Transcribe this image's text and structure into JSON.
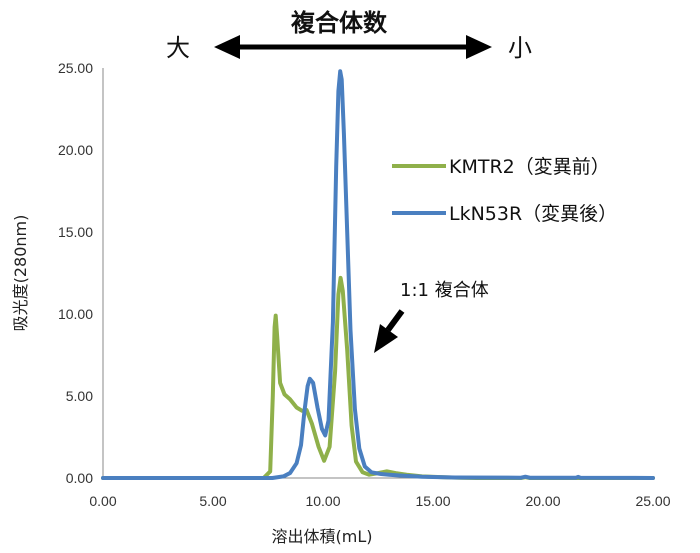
{
  "chart_data": {
    "type": "line",
    "xlabel": "溶出体積(mL)",
    "ylabel": "吸光度(280nm)",
    "xlim": [
      0,
      25
    ],
    "ylim": [
      0,
      25
    ],
    "x_ticks": [
      "0.00",
      "5.00",
      "10.00",
      "15.00",
      "20.00",
      "25.00"
    ],
    "y_ticks": [
      "0.00",
      "5.00",
      "10.00",
      "15.00",
      "20.00",
      "25.00"
    ],
    "grid": false,
    "legend_placement": "right",
    "series": [
      {
        "name": "KMTR2（変異前）",
        "color": "#8fb04a",
        "points": [
          [
            0,
            0
          ],
          [
            7.3,
            0
          ],
          [
            7.6,
            0.4
          ],
          [
            7.72,
            5
          ],
          [
            7.8,
            9.2
          ],
          [
            7.85,
            9.9
          ],
          [
            7.92,
            8.6
          ],
          [
            8.05,
            5.8
          ],
          [
            8.25,
            5.1
          ],
          [
            8.5,
            4.8
          ],
          [
            8.8,
            4.3
          ],
          [
            9.05,
            4.1
          ],
          [
            9.25,
            4.15
          ],
          [
            9.5,
            3.3
          ],
          [
            9.8,
            1.9
          ],
          [
            10.05,
            1.05
          ],
          [
            10.3,
            1.9
          ],
          [
            10.55,
            6.5
          ],
          [
            10.7,
            11.2
          ],
          [
            10.8,
            12.2
          ],
          [
            10.9,
            11.4
          ],
          [
            11.1,
            7.8
          ],
          [
            11.3,
            3.2
          ],
          [
            11.5,
            1.0
          ],
          [
            11.8,
            0.35
          ],
          [
            12.1,
            0.2
          ],
          [
            12.5,
            0.3
          ],
          [
            12.9,
            0.4
          ],
          [
            13.3,
            0.3
          ],
          [
            13.8,
            0.2
          ],
          [
            14.5,
            0.1
          ],
          [
            15.5,
            0.05
          ],
          [
            16.2,
            0.02
          ],
          [
            17,
            0
          ],
          [
            19,
            0
          ],
          [
            19.2,
            0.05
          ],
          [
            19.4,
            0
          ],
          [
            25,
            0
          ]
        ]
      },
      {
        "name": "LkN53R（変異後）",
        "color": "#4a7fc0",
        "points": [
          [
            0,
            0
          ],
          [
            7.7,
            0
          ],
          [
            8.2,
            0.1
          ],
          [
            8.5,
            0.3
          ],
          [
            8.8,
            0.9
          ],
          [
            9.0,
            2.0
          ],
          [
            9.15,
            4.0
          ],
          [
            9.3,
            5.6
          ],
          [
            9.4,
            6.05
          ],
          [
            9.55,
            5.8
          ],
          [
            9.75,
            4.3
          ],
          [
            9.95,
            3.0
          ],
          [
            10.1,
            2.6
          ],
          [
            10.25,
            3.5
          ],
          [
            10.45,
            9.5
          ],
          [
            10.6,
            19.0
          ],
          [
            10.7,
            23.6
          ],
          [
            10.78,
            24.8
          ],
          [
            10.85,
            24.3
          ],
          [
            10.95,
            21.0
          ],
          [
            11.1,
            15.0
          ],
          [
            11.25,
            9.0
          ],
          [
            11.45,
            4.2
          ],
          [
            11.65,
            1.8
          ],
          [
            11.9,
            0.7
          ],
          [
            12.2,
            0.35
          ],
          [
            12.6,
            0.25
          ],
          [
            13.0,
            0.2
          ],
          [
            13.5,
            0.15
          ],
          [
            14.5,
            0.08
          ],
          [
            16,
            0.03
          ],
          [
            19,
            0.02
          ],
          [
            19.2,
            0.08
          ],
          [
            19.4,
            0.02
          ],
          [
            21.5,
            0.02
          ],
          [
            21.6,
            0.07
          ],
          [
            21.7,
            0.02
          ],
          [
            25,
            0
          ]
        ]
      }
    ],
    "annotations": {
      "complex_label": "1:1 複合体",
      "top_label": "複合体数",
      "left_end": "大",
      "right_end": "小"
    }
  }
}
